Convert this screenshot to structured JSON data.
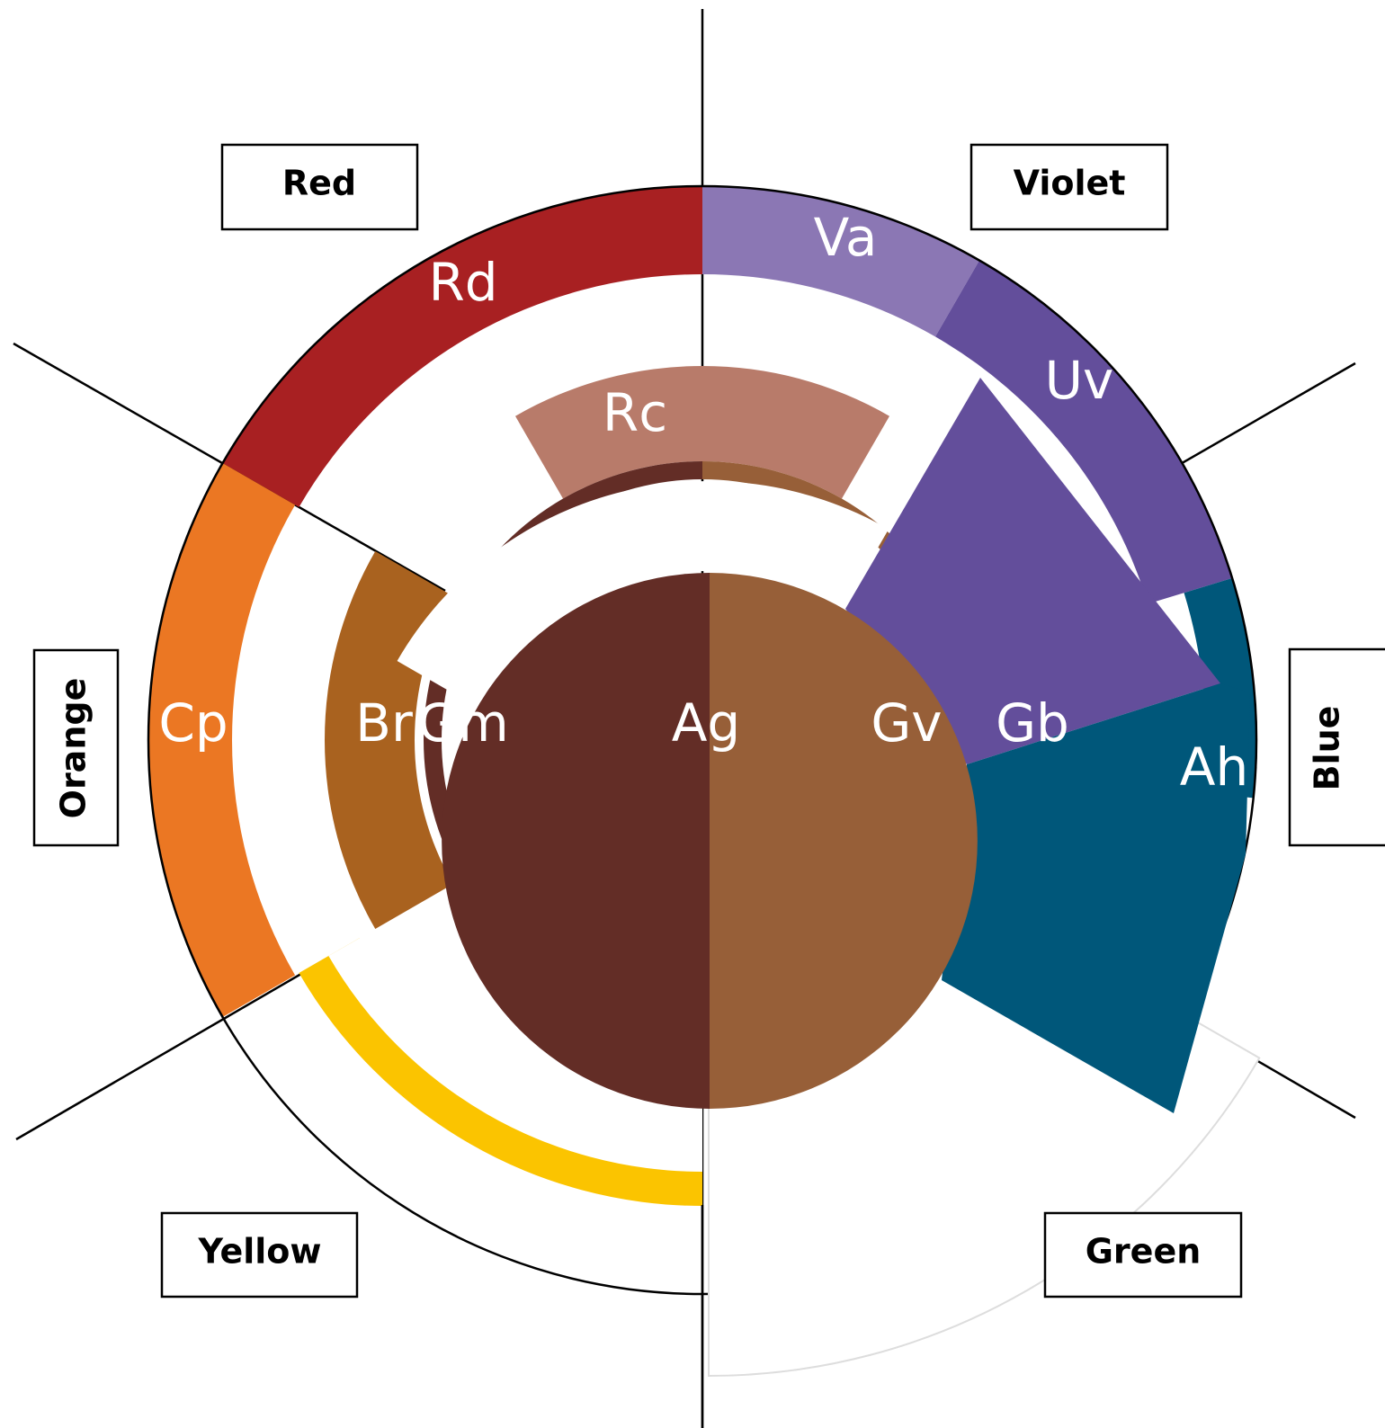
{
  "groups": {
    "red": "Red",
    "violet": "Violet",
    "orange": "Orange",
    "blue": "Blue",
    "yellow": "Yellow",
    "green": "Green"
  },
  "segments": {
    "rd": "Rd",
    "va": "Va",
    "uv": "Uv",
    "rc": "Rc",
    "cp": "Cp",
    "br": "Br",
    "gm": "Gm",
    "ag": "Ag",
    "gv": "Gv",
    "gb": "Gb",
    "ah": "Ah"
  }
}
